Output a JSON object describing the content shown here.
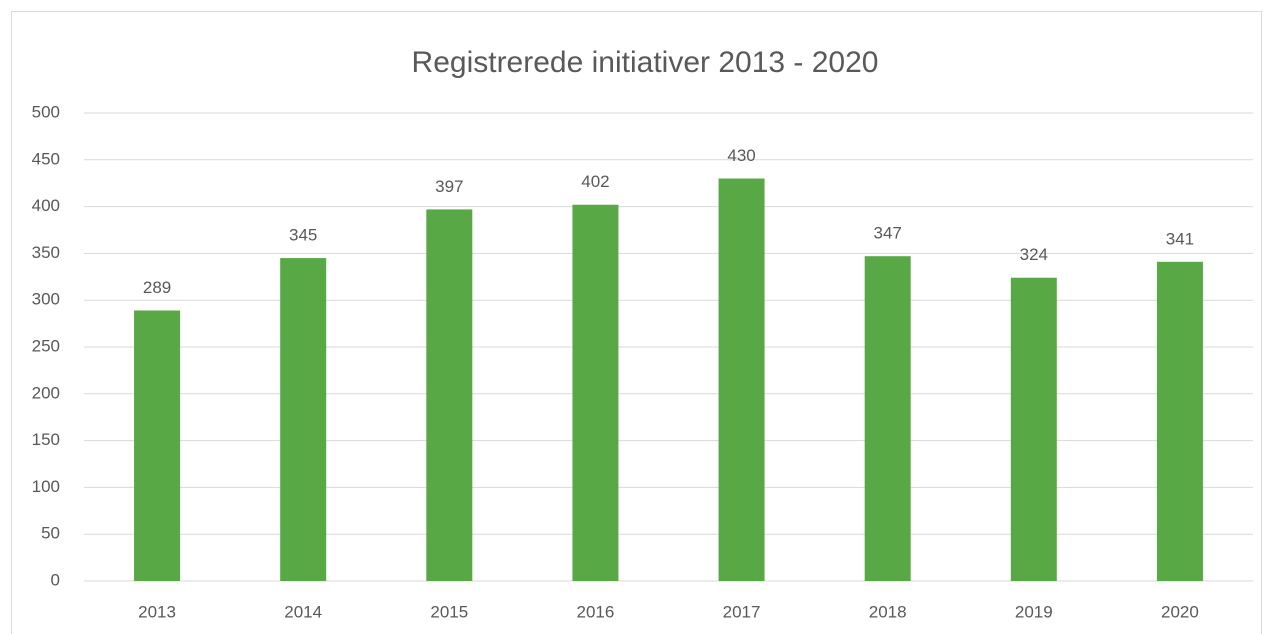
{
  "chart_data": {
    "type": "bar",
    "title": "Registrerede initiativer 2013 - 2020",
    "categories": [
      "2013",
      "2014",
      "2015",
      "2016",
      "2017",
      "2018",
      "2019",
      "2020"
    ],
    "values": [
      289,
      345,
      397,
      402,
      430,
      347,
      324,
      341
    ],
    "color": "#58a846",
    "ylim": [
      0,
      500
    ],
    "yticks": [
      0,
      50,
      100,
      150,
      200,
      250,
      300,
      350,
      400,
      450,
      500
    ],
    "grid": true,
    "data_labels": true
  }
}
